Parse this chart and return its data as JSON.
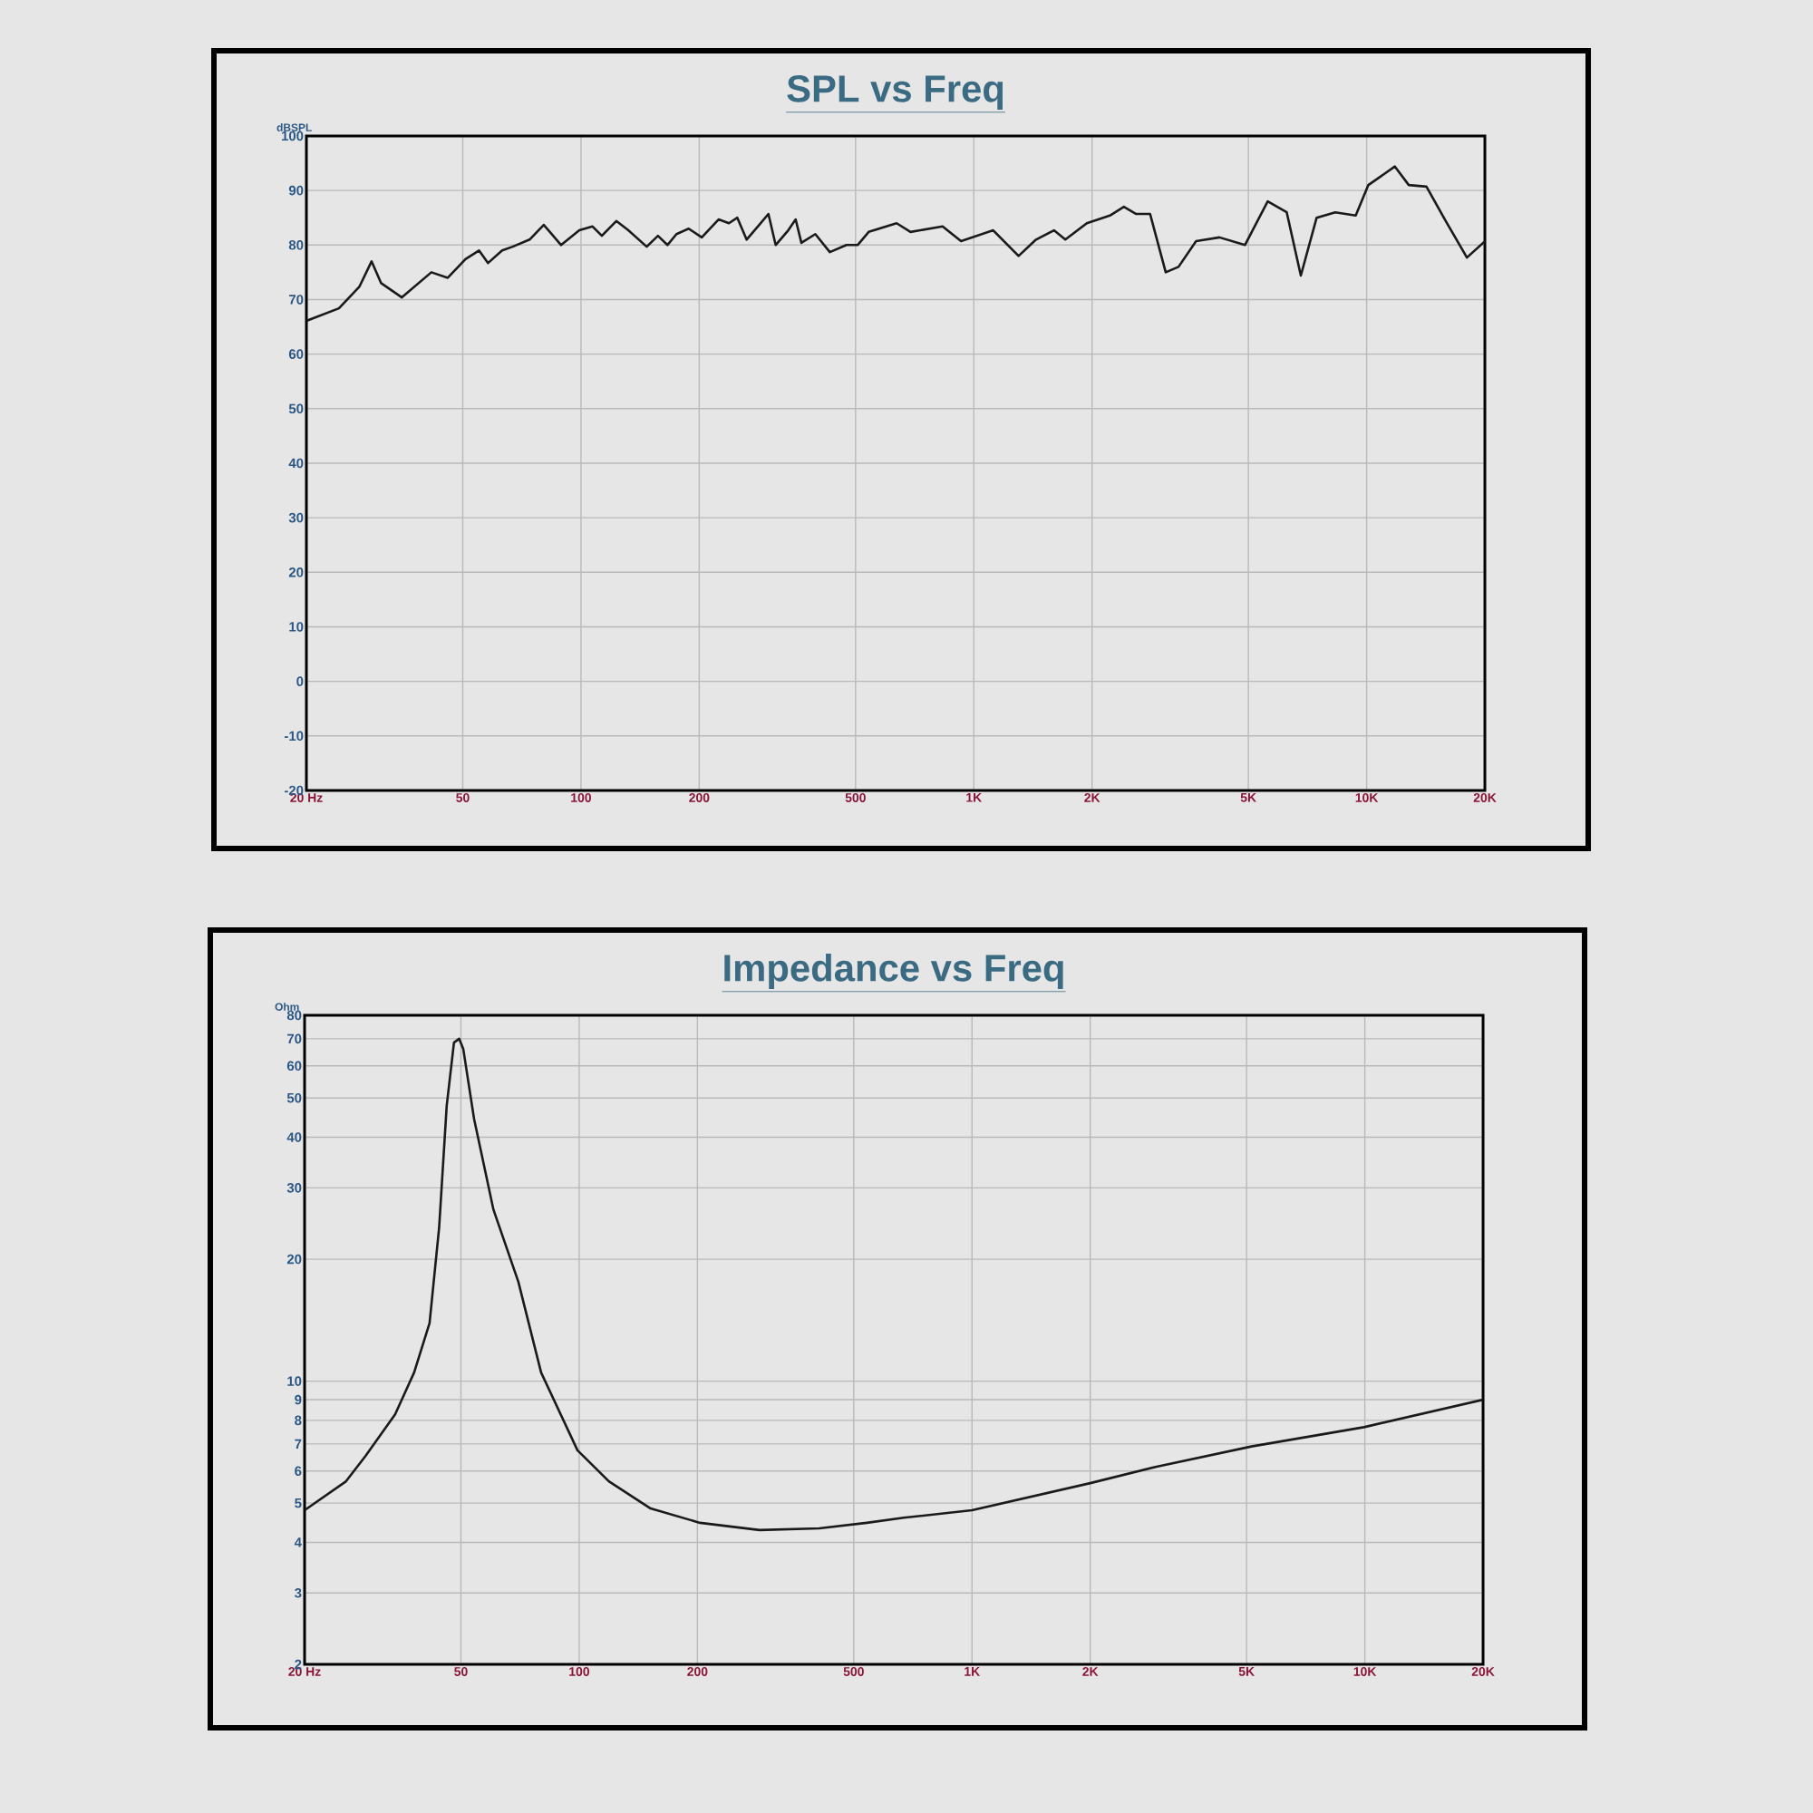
{
  "chart_data": [
    {
      "type": "line",
      "title": "SPL vs Freq",
      "ylabel": "dBSPL",
      "log": "x",
      "grid": true,
      "xlim": [
        20,
        20000
      ],
      "ylim": [
        -20,
        100
      ],
      "xticks": [
        {
          "value": 20,
          "label": "20 Hz"
        },
        50,
        100,
        200,
        500,
        {
          "value": 1000,
          "label": "1K"
        },
        {
          "value": 2000,
          "label": "2K"
        },
        {
          "value": 5000,
          "label": "5K"
        },
        {
          "value": 10000,
          "label": "10K"
        },
        {
          "value": 20000,
          "label": "20K"
        }
      ],
      "yticks": [
        -20,
        -10,
        0,
        10,
        20,
        30,
        40,
        50,
        60,
        70,
        80,
        90,
        100
      ],
      "series": [
        {
          "color": "#1a1a1a",
          "x": [
            20,
            24.2,
            27.3,
            29.3,
            31,
            35,
            41.6,
            45.8,
            50.8,
            55,
            58,
            63,
            67,
            74,
            80.4,
            89,
            99,
            107,
            113,
            123,
            132,
            147,
            157,
            166,
            175,
            188,
            203,
            224,
            238,
            250,
            264,
            282,
            300,
            313,
            337,
            352,
            364,
            395,
            430,
            474,
            506,
            540,
            636,
            690,
            833,
            928,
            1120,
            1300,
            1440,
            1600,
            1710,
            1940,
            2220,
            2410,
            2590,
            2810,
            3080,
            3320,
            3680,
            4220,
            4900,
            5600,
            6260,
            6800,
            7460,
            8320,
            9380,
            10100,
            11800,
            12800,
            14200,
            15900,
            18000,
            20000
          ],
          "values": [
            66.1,
            68.4,
            72.4,
            77,
            73,
            70.4,
            75,
            74,
            77.4,
            79,
            76.7,
            79,
            79.7,
            81,
            83.7,
            80,
            82.7,
            83.4,
            81.7,
            84.4,
            82.7,
            79.7,
            81.7,
            80,
            82,
            83,
            81.4,
            84.7,
            84,
            85,
            81,
            83.4,
            85.7,
            80,
            82.7,
            84.7,
            80.4,
            82,
            78.7,
            80,
            80,
            82.4,
            84,
            82.4,
            83.4,
            80.7,
            82.7,
            78,
            81,
            82.7,
            81,
            84,
            85.4,
            87,
            85.7,
            85.7,
            75,
            76,
            80.7,
            81.4,
            80,
            88,
            86,
            74.4,
            85,
            86,
            85.4,
            91,
            94.4,
            91,
            90.7,
            84.4,
            77.7,
            80.7
          ]
        }
      ]
    },
    {
      "type": "line",
      "title": "Impedance vs Freq",
      "ylabel": "Ohm",
      "log": "xy",
      "grid": true,
      "xlim": [
        20,
        20000
      ],
      "ylim": [
        2,
        80
      ],
      "xticks": [
        {
          "value": 20,
          "label": "20 Hz"
        },
        50,
        100,
        200,
        500,
        {
          "value": 1000,
          "label": "1K"
        },
        {
          "value": 2000,
          "label": "2K"
        },
        {
          "value": 5000,
          "label": "5K"
        },
        {
          "value": 10000,
          "label": "10K"
        },
        {
          "value": 20000,
          "label": "20K"
        }
      ],
      "yticks": [
        2,
        3,
        4,
        5,
        6,
        7,
        8,
        9,
        10,
        20,
        30,
        40,
        50,
        60,
        70,
        80
      ],
      "series": [
        {
          "color": "#1a1a1a",
          "x": [
            20,
            25.5,
            28.6,
            34,
            38,
            41.6,
            44,
            46,
            48,
            49.5,
            50.7,
            54,
            60.5,
            70,
            80,
            99,
            119,
            152,
            203,
            288,
            408,
            540,
            670,
            1000,
            2000,
            2950,
            5150,
            9950,
            20000
          ],
          "values": [
            4.8,
            5.66,
            6.54,
            8.28,
            10.5,
            13.9,
            23.9,
            47.8,
            68.5,
            70,
            66,
            44.4,
            26.5,
            17.6,
            10.5,
            6.75,
            5.66,
            4.85,
            4.47,
            4.29,
            4.33,
            4.47,
            4.6,
            4.8,
            5.6,
            6.15,
            6.9,
            7.7,
            9.0
          ]
        }
      ]
    }
  ]
}
